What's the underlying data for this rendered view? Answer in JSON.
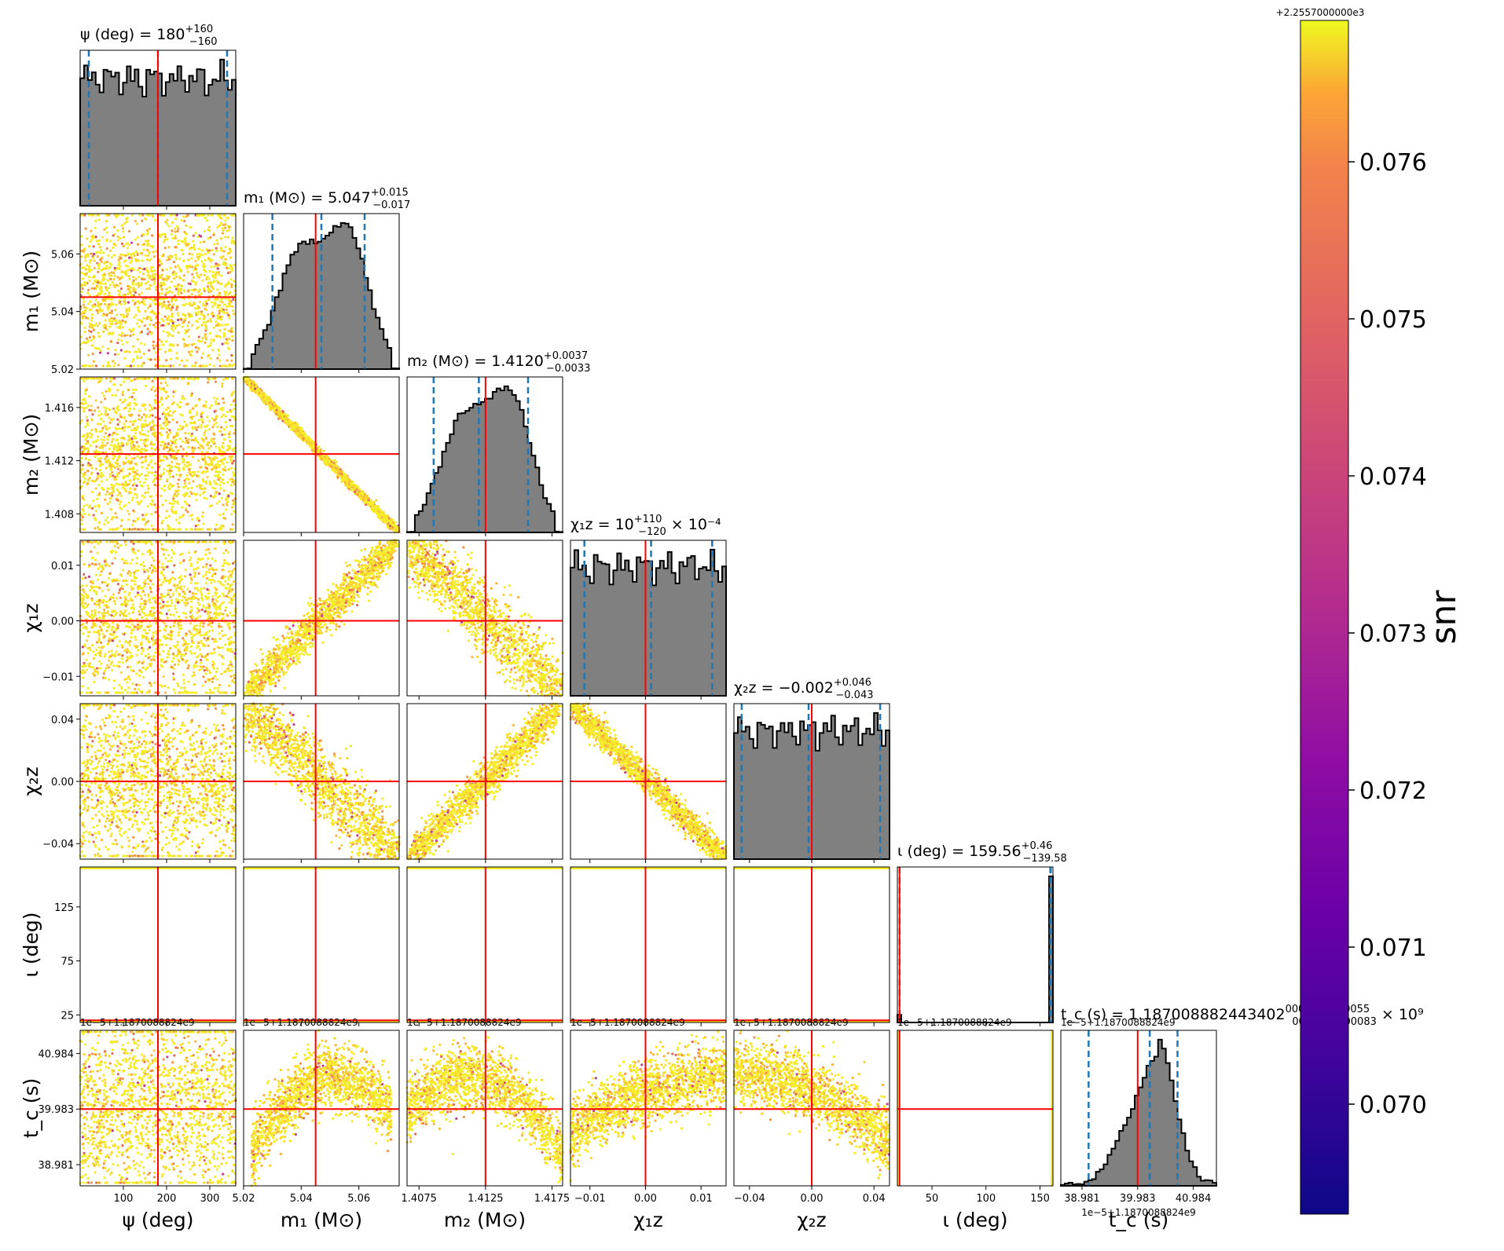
{
  "chart_data": {
    "type": "corner",
    "parameters": [
      {
        "id": "psi",
        "name": "ψ",
        "unit": "deg",
        "range": [
          0,
          360
        ],
        "ticks": [
          100,
          200,
          300
        ],
        "tick_labels": [
          "100",
          "200",
          "300"
        ],
        "title": "ψ (deg) = 180",
        "median": 180,
        "err_plus": "+160",
        "err_minus": "−160",
        "lo": 20,
        "hi": 340,
        "truth": 180,
        "xlabel": "ψ (deg)",
        "ylabel": "",
        "hist": "flat"
      },
      {
        "id": "m1",
        "name": "m1",
        "unit": "M⊙",
        "range": [
          5.02,
          5.074
        ],
        "ticks": [
          5.02,
          5.04,
          5.06
        ],
        "tick_labels": [
          "5.02",
          "5.04",
          "5.06"
        ],
        "title": "m₁ (M⊙) = 5.047",
        "median": 5.047,
        "err_plus": "+0.015",
        "err_minus": "−0.017",
        "lo": 5.03,
        "hi": 5.062,
        "truth": 5.045,
        "xlabel": "m₁ (M⊙)",
        "ylabel": "m₁ (M⊙)",
        "hist": "bimodal"
      },
      {
        "id": "m2",
        "name": "m2",
        "unit": "M⊙",
        "range": [
          1.4066,
          1.4183
        ],
        "ticks": [
          1.4075,
          1.4125,
          1.4175
        ],
        "tick_labels": [
          "1.4075",
          "1.4125",
          "1.4175"
        ],
        "ytick_vals": [
          1.408,
          1.412,
          1.416
        ],
        "ytick_labels": [
          "1.408",
          "1.412",
          "1.416"
        ],
        "title": "m₂ (M⊙) = 1.4120",
        "median": 1.412,
        "err_plus": "+0.0037",
        "err_minus": "−0.0033",
        "lo": 1.4086,
        "hi": 1.4157,
        "truth": 1.4125,
        "xlabel": "m₂ (M⊙)",
        "ylabel": "m₂ (M⊙)",
        "hist": "bimodal"
      },
      {
        "id": "chi1z",
        "name": "χ1z",
        "unit": "",
        "range": [
          -0.0135,
          0.0145
        ],
        "ticks": [
          -0.01,
          0.0,
          0.01
        ],
        "tick_labels": [
          "−0.01",
          "0.00",
          "0.01"
        ],
        "title": "χ₁z = 10",
        "median": 0.001,
        "err_plus": "+110",
        "err_minus": "−120",
        "title_suffix": "× 10⁻⁴",
        "lo": -0.011,
        "hi": 0.012,
        "truth": 0.0,
        "xlabel": "χ₁z",
        "ylabel": "χ₁z",
        "hist": "flat"
      },
      {
        "id": "chi2z",
        "name": "χ2z",
        "unit": "",
        "range": [
          -0.05,
          0.05
        ],
        "ticks": [
          -0.04,
          0.0,
          0.04
        ],
        "tick_labels": [
          "−0.04",
          "0.00",
          "0.04"
        ],
        "title": "χ₂z = −0.002",
        "median": -0.002,
        "err_plus": "+0.046",
        "err_minus": "−0.043",
        "lo": -0.045,
        "hi": 0.044,
        "truth": 0.0,
        "xlabel": "χ₂z",
        "ylabel": "χ₂z",
        "hist": "flat"
      },
      {
        "id": "iota",
        "name": "ι",
        "unit": "deg",
        "range": [
          18,
          162
        ],
        "ticks": [
          50,
          100,
          150
        ],
        "tick_labels": [
          "50",
          "100",
          "150"
        ],
        "ytick_vals": [
          25,
          75,
          125
        ],
        "ytick_labels": [
          "25",
          "75",
          "125"
        ],
        "title": "ι (deg) = 159.56",
        "median": 159.56,
        "err_plus": "+0.46",
        "err_minus": "−139.58",
        "lo": 20,
        "hi": 160,
        "truth": 20,
        "xlabel": "ι (deg)",
        "ylabel": "ι (deg)",
        "hist": "edges"
      },
      {
        "id": "tc",
        "name": "tc",
        "unit": "s",
        "range": [
          38.6,
          41.4
        ],
        "ticks": [
          38.981,
          39.983,
          40.984
        ],
        "tick_labels": [
          "38.981",
          "39.983",
          "40.984"
        ],
        "title": "t_c (s) = 1.187008882443402",
        "median": 40.2,
        "err_plus": "0000000000055",
        "err_minus": "0000000000083",
        "title_suffix": "× 10⁹",
        "lo": 39.1,
        "hi": 40.7,
        "truth": 39.983,
        "offset_label": "1e−5+1.1870088824e9",
        "xlabel": "t_c (s)",
        "ylabel": "t_c (s)",
        "hist": "skewed"
      }
    ],
    "colorbar": {
      "label": "snr",
      "cmap": "plasma",
      "range": [
        0.0693,
        0.0769
      ],
      "ticks": [
        0.07,
        0.071,
        0.072,
        0.073,
        0.074,
        0.075,
        0.076
      ],
      "tick_labels": [
        "0.070",
        "0.071",
        "0.072",
        "0.073",
        "0.074",
        "0.075",
        "0.076"
      ],
      "offset_label": "+2.2557000000e3"
    },
    "truth_color": "#ff0000",
    "quantile_color": "#1f77b4",
    "hist_fill": "#808080"
  }
}
